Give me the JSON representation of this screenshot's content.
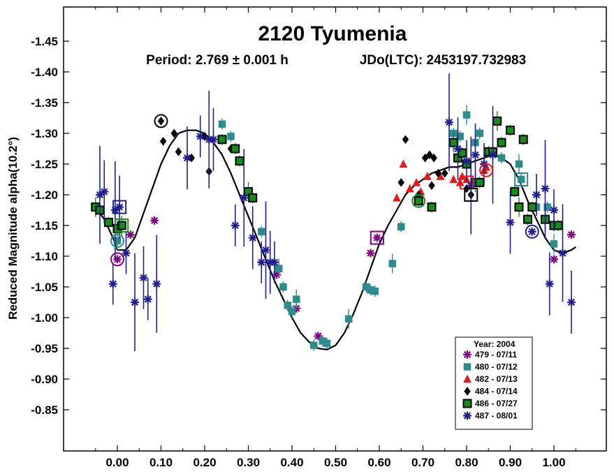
{
  "chart_data": {
    "type": "scatter",
    "title": "2120 Tyumenia",
    "subtitle_period": "Period: 2.769 ± 0.001 h",
    "subtitle_epoch": "JDo(LTC): 2453197.732983",
    "xlabel": "",
    "ylabel": "Reduced Magnitude alpha(10.2°)",
    "xlim": [
      -0.07,
      1.08
    ],
    "ylim": [
      -0.8,
      -1.5
    ],
    "x_ticks": [
      "0.00",
      "0.10",
      "0.20",
      "0.30",
      "0.40",
      "0.50",
      "0.60",
      "0.70",
      "0.80",
      "0.90",
      "1.00"
    ],
    "y_ticks": [
      "-1.45",
      "-1.40",
      "-1.35",
      "-1.30",
      "-1.25",
      "-1.20",
      "-1.15",
      "-1.10",
      "-1.05",
      "-1.00",
      "-0.95",
      "-0.90",
      "-0.85"
    ],
    "grid": false,
    "legend_position": "bottom-right",
    "legend_title": "Year: 2004",
    "series": [
      {
        "name": "479 - 07/11",
        "marker": "asterisk",
        "color": "#800080",
        "points": [
          [
            0.0,
            -1.095
          ],
          [
            0.03,
            -1.135
          ],
          [
            0.085,
            -1.158
          ],
          [
            0.365,
            -1.07
          ],
          [
            0.41,
            -1.015
          ],
          [
            0.46,
            -0.97
          ],
          [
            0.58,
            -1.105
          ],
          [
            0.595,
            -1.13
          ],
          [
            1.0,
            -1.095
          ],
          [
            1.04,
            -1.135
          ]
        ]
      },
      {
        "name": "480 - 07/12",
        "marker": "square",
        "color": "#2e8b8b",
        "points": [
          [
            0.0,
            -1.125
          ],
          [
            0.24,
            -1.315
          ],
          [
            0.26,
            -1.295
          ],
          [
            0.33,
            -1.14
          ],
          [
            0.37,
            -1.08
          ],
          [
            0.38,
            -1.05
          ],
          [
            0.39,
            -1.02
          ],
          [
            0.4,
            -1.01
          ],
          [
            0.41,
            -1.03
          ],
          [
            0.45,
            -0.955
          ],
          [
            0.47,
            -0.962
          ],
          [
            0.48,
            -0.958
          ],
          [
            0.53,
            -0.998
          ],
          [
            0.57,
            -1.05
          ],
          [
            0.58,
            -1.045
          ],
          [
            0.59,
            -1.043
          ],
          [
            0.63,
            -1.088
          ],
          [
            0.65,
            -1.148
          ],
          [
            0.77,
            -1.3
          ],
          [
            0.785,
            -1.295
          ],
          [
            0.8,
            -1.33
          ],
          [
            0.82,
            -1.285
          ],
          [
            0.83,
            -1.3
          ],
          [
            0.88,
            -1.26
          ],
          [
            0.92,
            -1.25
          ],
          [
            0.925,
            -1.225
          ],
          [
            0.96,
            -1.18
          ],
          [
            0.985,
            -1.18
          ],
          [
            1.0,
            -1.12
          ]
        ]
      },
      {
        "name": "482 - 07/13",
        "marker": "triangle",
        "color": "#e31a1c",
        "points": [
          [
            0.64,
            -1.195
          ],
          [
            0.655,
            -1.25
          ],
          [
            0.67,
            -1.21
          ],
          [
            0.685,
            -1.22
          ],
          [
            0.695,
            -1.205
          ],
          [
            0.71,
            -1.23
          ],
          [
            0.74,
            -1.23
          ],
          [
            0.77,
            -1.225
          ],
          [
            0.785,
            -1.22
          ],
          [
            0.79,
            -1.23
          ],
          [
            0.8,
            -1.225
          ],
          [
            0.84,
            -1.24
          ],
          [
            0.845,
            -1.245
          ]
        ]
      },
      {
        "name": "484 - 07/14",
        "marker": "diamond",
        "color": "#000000",
        "points": [
          [
            0.1,
            -1.32
          ],
          [
            0.105,
            -1.287
          ],
          [
            0.13,
            -1.3
          ],
          [
            0.14,
            -1.27
          ],
          [
            0.17,
            -1.26
          ],
          [
            0.2,
            -1.295
          ],
          [
            0.21,
            -1.238
          ],
          [
            0.26,
            -1.275
          ],
          [
            0.65,
            -1.22
          ],
          [
            0.66,
            -1.29
          ],
          [
            0.69,
            -1.2
          ],
          [
            0.705,
            -1.26
          ],
          [
            0.715,
            -1.265
          ],
          [
            0.72,
            -1.215
          ],
          [
            0.725,
            -1.26
          ],
          [
            0.735,
            -1.235
          ],
          [
            0.75,
            -1.235
          ],
          [
            0.8,
            -1.21
          ],
          [
            0.81,
            -1.2
          ]
        ]
      },
      {
        "name": "486 - 07/27",
        "marker": "filled-square",
        "color": "#1a8c1a",
        "points": [
          [
            -0.05,
            -1.18
          ],
          [
            -0.04,
            -1.175
          ],
          [
            -0.02,
            -1.155
          ],
          [
            0.0,
            -1.145
          ],
          [
            0.01,
            -1.15
          ],
          [
            0.24,
            -1.29
          ],
          [
            0.27,
            -1.275
          ],
          [
            0.28,
            -1.255
          ],
          [
            0.3,
            -1.205
          ],
          [
            0.31,
            -1.195
          ],
          [
            0.69,
            -1.19
          ],
          [
            0.72,
            -1.18
          ],
          [
            0.77,
            -1.285
          ],
          [
            0.78,
            -1.26
          ],
          [
            0.79,
            -1.268
          ],
          [
            0.8,
            -1.25
          ],
          [
            0.82,
            -1.22
          ],
          [
            0.83,
            -1.22
          ],
          [
            0.85,
            -1.27
          ],
          [
            0.86,
            -1.27
          ],
          [
            0.87,
            -1.32
          ],
          [
            0.88,
            -1.285
          ],
          [
            0.9,
            -1.305
          ],
          [
            0.91,
            -1.205
          ],
          [
            0.92,
            -1.18
          ],
          [
            0.93,
            -1.29
          ],
          [
            0.94,
            -1.16
          ],
          [
            0.95,
            -1.18
          ],
          [
            0.98,
            -1.16
          ],
          [
            1.0,
            -1.15
          ],
          [
            1.01,
            -1.15
          ]
        ]
      },
      {
        "name": "487 - 08/01",
        "marker": "asterisk",
        "color": "#1f1f8f",
        "points": [
          [
            -0.04,
            -1.2
          ],
          [
            -0.03,
            -1.205
          ],
          [
            -0.01,
            -1.055
          ],
          [
            -0.005,
            -1.175
          ],
          [
            0.005,
            -1.18
          ],
          [
            0.02,
            -1.105
          ],
          [
            0.04,
            -1.025
          ],
          [
            0.06,
            -1.065
          ],
          [
            0.07,
            -1.03
          ],
          [
            0.09,
            -1.055
          ],
          [
            0.16,
            -1.26
          ],
          [
            0.19,
            -1.295
          ],
          [
            0.21,
            -1.29
          ],
          [
            0.22,
            -1.29
          ],
          [
            0.27,
            -1.15
          ],
          [
            0.29,
            -1.195
          ],
          [
            0.31,
            -1.13
          ],
          [
            0.33,
            -1.09
          ],
          [
            0.34,
            -1.11
          ],
          [
            0.35,
            -1.09
          ],
          [
            0.36,
            -1.09
          ],
          [
            0.76,
            -1.318
          ],
          [
            0.78,
            -1.275
          ],
          [
            0.8,
            -1.255
          ],
          [
            0.81,
            -1.215
          ],
          [
            0.82,
            -1.265
          ],
          [
            0.84,
            -1.25
          ],
          [
            0.86,
            -1.265
          ],
          [
            0.9,
            -1.155
          ],
          [
            0.96,
            -1.2
          ],
          [
            0.98,
            -1.21
          ],
          [
            0.99,
            -1.055
          ],
          [
            1.0,
            -1.175
          ],
          [
            1.02,
            -1.105
          ],
          [
            1.04,
            -1.025
          ]
        ]
      }
    ],
    "fit_curve": {
      "x": [
        -0.05,
        -0.03,
        -0.01,
        0.0,
        0.02,
        0.04,
        0.06,
        0.08,
        0.1,
        0.12,
        0.14,
        0.16,
        0.18,
        0.2,
        0.22,
        0.24,
        0.26,
        0.28,
        0.3,
        0.32,
        0.34,
        0.36,
        0.38,
        0.4,
        0.42,
        0.44,
        0.46,
        0.48,
        0.5,
        0.52,
        0.54,
        0.56,
        0.58,
        0.6,
        0.62,
        0.64,
        0.66,
        0.68,
        0.7,
        0.72,
        0.74,
        0.76,
        0.78,
        0.8,
        0.82,
        0.84,
        0.86,
        0.88,
        0.9,
        0.92,
        0.94,
        0.96,
        0.98,
        1.0,
        1.02,
        1.04,
        1.05
      ],
      "y": [
        -1.18,
        -1.16,
        -1.13,
        -1.11,
        -1.11,
        -1.13,
        -1.17,
        -1.21,
        -1.25,
        -1.28,
        -1.3,
        -1.305,
        -1.305,
        -1.3,
        -1.285,
        -1.265,
        -1.235,
        -1.2,
        -1.165,
        -1.13,
        -1.095,
        -1.06,
        -1.03,
        -1.0,
        -0.975,
        -0.96,
        -0.95,
        -0.948,
        -0.955,
        -0.975,
        -1.005,
        -1.04,
        -1.08,
        -1.12,
        -1.15,
        -1.175,
        -1.2,
        -1.215,
        -1.225,
        -1.235,
        -1.24,
        -1.245,
        -1.245,
        -1.25,
        -1.255,
        -1.26,
        -1.265,
        -1.26,
        -1.25,
        -1.225,
        -1.19,
        -1.16,
        -1.13,
        -1.11,
        -1.105,
        -1.11,
        -1.115
      ]
    }
  }
}
